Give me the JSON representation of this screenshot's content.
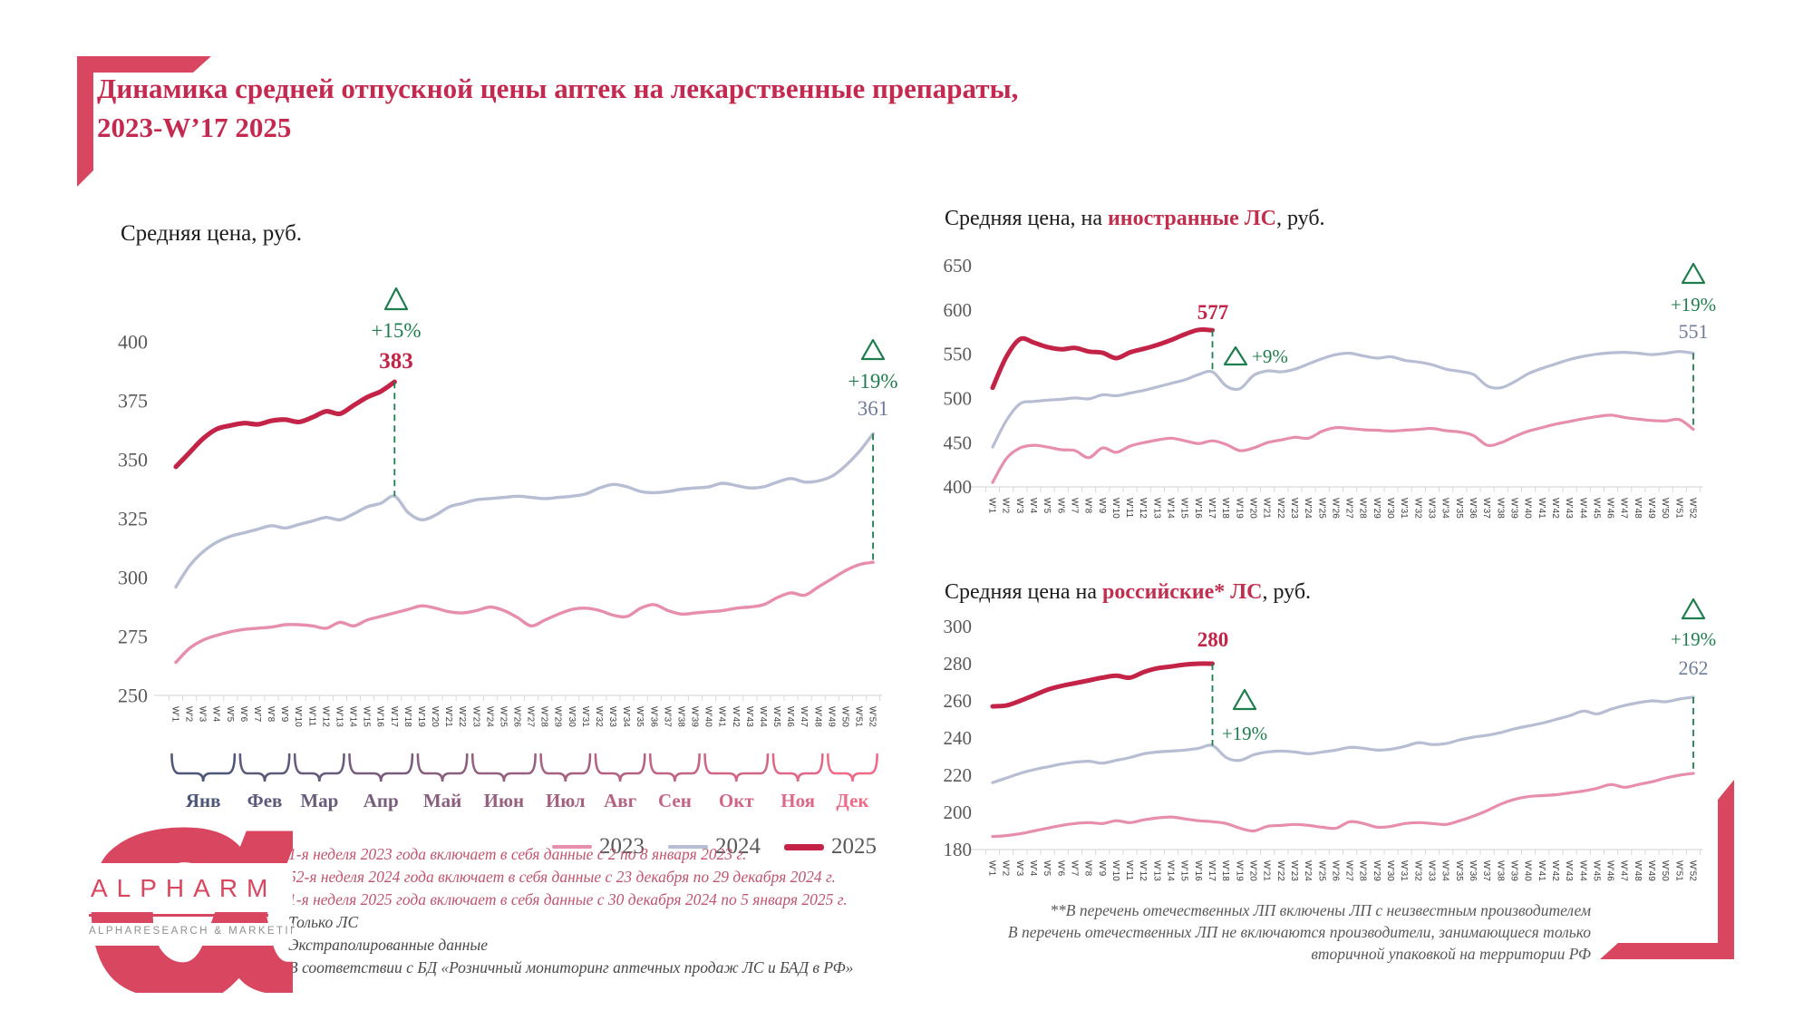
{
  "page_title": {
    "line1": "Динамика средней отпускной цены аптек на лекарственные препараты,",
    "line2": "2023-W’17 2025"
  },
  "weeks": [
    "W’1",
    "W’2",
    "W’3",
    "W’4",
    "W’5",
    "W’6",
    "W’7",
    "W’8",
    "W’9",
    "W’10",
    "W’11",
    "W’12",
    "W’13",
    "W’14",
    "W’15",
    "W’16",
    "W’17",
    "W’18",
    "W’19",
    "W’20",
    "W’21",
    "W’22",
    "W’23",
    "W’24",
    "W’25",
    "W’26",
    "W’27",
    "W’28",
    "W’29",
    "W’30",
    "W’31",
    "W’32",
    "W’33",
    "W’34",
    "W’35",
    "W’36",
    "W’37",
    "W’38",
    "W’39",
    "W’40",
    "W’41",
    "W’42",
    "W’43",
    "W’44",
    "W’45",
    "W’46",
    "W’47",
    "W’48",
    "W’49",
    "W’50",
    "W’51",
    "W’52"
  ],
  "months": {
    "items": [
      {
        "label": "Янв",
        "range": [
          1,
          5
        ],
        "color": "#4d5878"
      },
      {
        "label": "Фев",
        "range": [
          6,
          9
        ],
        "color": "#5c5a79"
      },
      {
        "label": "Мар",
        "range": [
          10,
          13
        ],
        "color": "#6a5b7b"
      },
      {
        "label": "Апр",
        "range": [
          14,
          18
        ],
        "color": "#795d7c"
      },
      {
        "label": "Май",
        "range": [
          19,
          22
        ],
        "color": "#885f7d"
      },
      {
        "label": "Июн",
        "range": [
          23,
          27
        ],
        "color": "#96607f"
      },
      {
        "label": "Июл",
        "range": [
          28,
          31
        ],
        "color": "#a56280"
      },
      {
        "label": "Авг",
        "range": [
          32,
          35
        ],
        "color": "#b36381"
      },
      {
        "label": "Сен",
        "range": [
          36,
          39
        ],
        "color": "#c26583"
      },
      {
        "label": "Окт",
        "range": [
          40,
          44
        ],
        "color": "#d16784"
      },
      {
        "label": "Ноя",
        "range": [
          45,
          48
        ],
        "color": "#df6886"
      },
      {
        "label": "Дек",
        "range": [
          49,
          52
        ],
        "color": "#ee6a87"
      }
    ]
  },
  "legend": {
    "items": [
      {
        "label": "2023",
        "color": "#e78faa",
        "thick": 4
      },
      {
        "label": "2024",
        "color": "#b7bdd2",
        "thick": 4
      },
      {
        "label": "2025",
        "color": "#c32347",
        "thick": 7
      }
    ]
  },
  "chart_data": [
    {
      "id": "total",
      "type": "line",
      "title": {
        "prefix": "Средняя цена, руб.",
        "red": "",
        "suffix": ""
      },
      "ylabel": "руб.",
      "y_ticks": [
        400,
        375,
        350,
        325,
        300,
        275,
        250
      ],
      "ylim": [
        250,
        400
      ],
      "x": "weeks W’1–W’52, months Янв–Дек",
      "series": [
        {
          "name": "2023",
          "color": "#e78faa",
          "width": 3.4,
          "values": [
            264,
            270,
            273.5,
            275.5,
            277,
            278,
            278.5,
            279,
            280,
            280,
            279.5,
            278.5,
            281,
            279.5,
            282,
            283.5,
            285,
            286.5,
            288,
            287,
            285.5,
            285,
            286,
            287.5,
            286,
            283,
            279.5,
            282,
            284.5,
            286.5,
            287,
            286,
            284,
            283.5,
            287,
            288.5,
            286,
            284.5,
            285,
            285.5,
            286,
            287,
            287.5,
            288.5,
            291.5,
            293.5,
            292.5,
            296,
            299.5,
            303,
            305.5,
            306.5
          ]
        },
        {
          "name": "2024",
          "color": "#b7bdd2",
          "width": 3.4,
          "values": [
            296,
            305,
            311,
            315,
            317.5,
            319,
            320.5,
            322,
            321,
            322.5,
            324,
            325.5,
            324.5,
            327,
            330,
            331.5,
            334.5,
            327.5,
            324.5,
            326.5,
            330,
            331.5,
            333,
            333.5,
            334,
            334.5,
            334,
            333.5,
            334,
            334.5,
            335.5,
            338,
            339.5,
            338.5,
            336.5,
            336,
            336.5,
            337.5,
            338,
            338.5,
            340,
            339,
            338,
            338.5,
            340.5,
            342,
            340.5,
            341,
            343,
            347.5,
            353.5,
            361
          ]
        },
        {
          "name": "2025",
          "color": "#c32347",
          "width": 5.2,
          "values": [
            347,
            353,
            359,
            363,
            364.5,
            365.5,
            365,
            366.5,
            367,
            366,
            368,
            370.5,
            369.5,
            373,
            376.5,
            379,
            383
          ]
        }
      ],
      "annotations": {
        "mid": {
          "week": 17,
          "pct": "+15%",
          "value": "383"
        },
        "end": {
          "week": 52,
          "pct": "+19%",
          "value": "361"
        }
      }
    },
    {
      "id": "foreign",
      "type": "line",
      "title": {
        "prefix": "Средняя цена, на ",
        "red": "иностранные ЛС",
        "suffix": ", руб."
      },
      "y_ticks": [
        650,
        600,
        550,
        500,
        450,
        400
      ],
      "ylim": [
        400,
        650
      ],
      "series": [
        {
          "name": "2023",
          "color": "#e78faa",
          "width": 3.2,
          "values": [
            405,
            432,
            444,
            447,
            445,
            442,
            441,
            433,
            444,
            439,
            446,
            450,
            453,
            455,
            452,
            449,
            452,
            448,
            441,
            444,
            450,
            453,
            456,
            455,
            463,
            467,
            466,
            464.5,
            464,
            463,
            464,
            465,
            466,
            463.5,
            462,
            458,
            447,
            450,
            457,
            463,
            467,
            471,
            474,
            477,
            479.5,
            481,
            478.5,
            476.5,
            475,
            474.5,
            476,
            465
          ]
        },
        {
          "name": "2024",
          "color": "#b7bdd2",
          "width": 3.2,
          "values": [
            445,
            475,
            494,
            496.5,
            498,
            499,
            500.5,
            499.5,
            504,
            503,
            506,
            509,
            513,
            517,
            521,
            527,
            530,
            514,
            511,
            526,
            531,
            530,
            533,
            539,
            545,
            549.5,
            551,
            548,
            545.5,
            547,
            543,
            541,
            538,
            533,
            530.5,
            527,
            514,
            512,
            519,
            528,
            534,
            539,
            544,
            547.5,
            550,
            551.5,
            552,
            551,
            549.5,
            551,
            553,
            551
          ]
        },
        {
          "name": "2025",
          "color": "#c32347",
          "width": 5,
          "values": [
            512,
            547,
            567,
            563,
            558,
            555.5,
            557,
            553,
            551.5,
            545.5,
            552,
            556,
            560.5,
            566,
            572.5,
            577.5,
            577
          ]
        }
      ],
      "annotations": {
        "mid": {
          "week": 17,
          "pct": "+9%",
          "value": "577"
        },
        "end": {
          "week": 52,
          "pct": "+19%",
          "value": "551"
        }
      }
    },
    {
      "id": "domestic",
      "type": "line",
      "title": {
        "prefix": "Средняя цена на ",
        "red": "российские* ЛС",
        "suffix": ", руб."
      },
      "y_ticks": [
        300,
        280,
        260,
        240,
        220,
        200,
        180
      ],
      "ylim": [
        180,
        300
      ],
      "series": [
        {
          "name": "2023",
          "color": "#e78faa",
          "width": 3.2,
          "values": [
            187,
            187.5,
            188.5,
            190,
            191.5,
            193,
            194,
            194.5,
            194,
            195.5,
            194.5,
            196,
            197,
            197.5,
            196.5,
            195.5,
            195,
            194,
            191.5,
            190,
            192.5,
            193,
            193.5,
            193,
            192,
            191.5,
            195,
            194,
            192,
            192.5,
            194,
            194.5,
            194,
            193.5,
            195.5,
            198,
            201,
            204.5,
            207,
            208.5,
            209,
            209.5,
            210.5,
            211.5,
            213,
            215,
            213.5,
            215,
            216.5,
            218.5,
            220,
            221
          ]
        },
        {
          "name": "2024",
          "color": "#b7bdd2",
          "width": 3.2,
          "values": [
            216,
            218.5,
            221,
            223,
            224.5,
            226,
            227,
            227.5,
            226.5,
            228,
            229.5,
            231.5,
            232.5,
            233,
            233.5,
            234.5,
            236,
            229.5,
            228,
            231,
            232.5,
            233,
            232.5,
            231.5,
            232.5,
            233.5,
            235,
            234.5,
            233.5,
            234,
            235.5,
            237.5,
            236.5,
            237,
            239,
            240.5,
            241.5,
            243,
            245,
            246.5,
            248,
            250,
            252,
            254.5,
            253,
            255.5,
            257.5,
            259,
            260,
            259.5,
            261,
            262
          ]
        },
        {
          "name": "2025",
          "color": "#c32347",
          "width": 5,
          "values": [
            257,
            257.5,
            260,
            263,
            266,
            268,
            269.5,
            271,
            272.5,
            273.5,
            272.5,
            275.5,
            277.5,
            278.5,
            279.5,
            280,
            280
          ]
        }
      ],
      "annotations": {
        "mid": {
          "week": 17,
          "pct": "+19%",
          "value": "280"
        },
        "end": {
          "week": 52,
          "pct": "+19%",
          "value": "262"
        }
      }
    }
  ],
  "footnotes_left": {
    "red": [
      "1-я неделя 2023 года включает в себя данные с 2 по 8 января 2023 г.",
      "52-я неделя 2024 года включает в себя данные с 23 декабря по 29 декабря 2024 г.",
      "1-я неделя 2025 года включает в себя данные с 30 декабря 2024 по 5 января 2025 г."
    ],
    "gray": [
      "Только ЛС",
      "Экстраполированные данные",
      "В соответствии с БД «Розничный мониторинг аптечных продаж ЛС и БАД в РФ»"
    ]
  },
  "footnote_right": {
    "lines": [
      "**В перечень отечественных ЛП включены ЛП с неизвестным производителем",
      "В перечень отечественных ЛП не включаются производители, занимающиеся только",
      "вторичной упаковкой на территории РФ"
    ]
  },
  "logo": {
    "name": "ALPHARM",
    "caption": "ALPHARESEARCH & MARKETING"
  },
  "colors": {
    "accent_crimson": "#c42a50",
    "bracket_red": "#d8475f",
    "green_delta": "#1e7d4c",
    "value_gray": "#6f7b99",
    "axis_text": "#595959"
  }
}
